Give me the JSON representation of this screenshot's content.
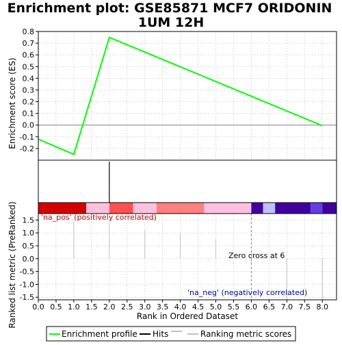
{
  "chart_data": {
    "type": "line",
    "title_line1": "Enrichment plot: GSE85871 MCF7 ORIDONIN",
    "title_line2": "1UM 12H",
    "top_panel": {
      "ylabel": "Enrichment score (ES)",
      "ylim": [
        -0.3,
        0.8
      ],
      "yticks": [
        "0.8",
        "0.7",
        "0.6",
        "0.5",
        "0.4",
        "0.3",
        "0.2",
        "0.1",
        "0.0",
        "-0.1",
        "-0.2"
      ],
      "ytick_values": [
        0.8,
        0.7,
        0.6,
        0.5,
        0.4,
        0.3,
        0.2,
        0.1,
        0.0,
        -0.1,
        -0.2
      ],
      "series": [
        {
          "name": "Enrichment profile",
          "color": "#00ff00",
          "x": [
            0,
            1,
            2,
            8
          ],
          "y": [
            -0.12,
            -0.25,
            0.75,
            -0.005
          ]
        }
      ]
    },
    "hits": [
      2
    ],
    "color_bar": [
      {
        "from": 0.0,
        "to": 1.35,
        "color": "#d40000"
      },
      {
        "from": 1.35,
        "to": 2.0,
        "color": "#ffc0e0"
      },
      {
        "from": 2.0,
        "to": 2.67,
        "color": "#ff5050"
      },
      {
        "from": 2.67,
        "to": 3.33,
        "color": "#ffc0e0"
      },
      {
        "from": 3.33,
        "to": 4.67,
        "color": "#ff8080"
      },
      {
        "from": 4.67,
        "to": 6.0,
        "color": "#ffc0e0"
      },
      {
        "from": 6.0,
        "to": 6.33,
        "color": "#4000a0"
      },
      {
        "from": 6.33,
        "to": 6.67,
        "color": "#c0c0ff"
      },
      {
        "from": 6.67,
        "to": 7.67,
        "color": "#4000a0"
      },
      {
        "from": 7.67,
        "to": 8.0,
        "color": "#6040e0"
      },
      {
        "from": 8.0,
        "to": 8.4,
        "color": "#4000a0"
      }
    ],
    "bottom_panel": {
      "ylabel": "Ranked list metric (PreRanked)",
      "ylim": [
        -1.5,
        1.5
      ],
      "yticks": [
        "1.5",
        "1.0",
        "0.5",
        "0.0",
        "-0.5",
        "-1.0",
        "-1.5"
      ],
      "ytick_values": [
        1.5,
        1.0,
        0.5,
        0.0,
        -0.5,
        -1.0,
        -1.5
      ],
      "metric_x": [
        0,
        1,
        2,
        3,
        4,
        5,
        6,
        7,
        8
      ],
      "metric_y": [
        1.7,
        1.5,
        1.4,
        1.1,
        1.0,
        0.75,
        -0.2,
        0.0,
        0.0
      ],
      "pos_label": "'na_pos' (positively correlated)",
      "neg_label": "'na_neg' (negatively correlated)",
      "zero_cross_label": "Zero cross at 6",
      "zero_cross": 6
    },
    "xlabel": "Rank in Ordered Dataset",
    "xlim": [
      0,
      8.4
    ],
    "xticks": [
      "0.0",
      "0.5",
      "1.0",
      "1.5",
      "2.0",
      "2.5",
      "3.0",
      "3.5",
      "4.0",
      "4.5",
      "5.0",
      "5.5",
      "6.0",
      "6.5",
      "7.0",
      "7.5",
      "8.0"
    ],
    "xtick_values": [
      0,
      0.5,
      1,
      1.5,
      2,
      2.5,
      3,
      3.5,
      4,
      4.5,
      5,
      5.5,
      6,
      6.5,
      7,
      7.5,
      8
    ],
    "legend": {
      "placement": "bottom",
      "items": [
        {
          "label": "Enrichment profile",
          "color": "#00ff00"
        },
        {
          "label": "Hits",
          "color": "#000000"
        },
        {
          "label": "Ranking metric scores",
          "color": "#c0c0c0"
        }
      ]
    }
  }
}
